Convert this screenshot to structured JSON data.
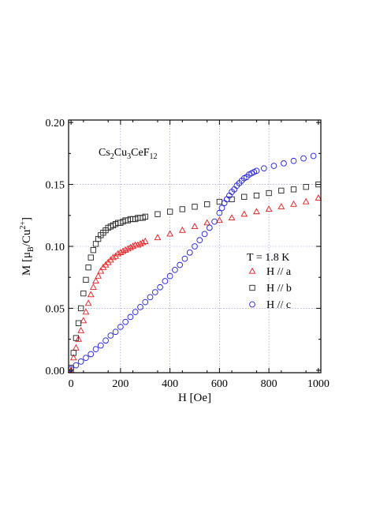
{
  "chart_data": {
    "type": "scatter",
    "title": "",
    "xlabel": "H [Oe]",
    "ylabel_parts": {
      "prefix": "M [μ",
      "sub_B": "B",
      "middle": "/Cu",
      "sup": "2+",
      "suffix": "]"
    },
    "compound_parts": [
      "Cs",
      "2",
      "Cu",
      "3",
      "CeF",
      "12"
    ],
    "temperature_label": "T = 1.8 K",
    "xlim": [
      -10,
      1010
    ],
    "ylim": [
      -0.002,
      0.202
    ],
    "xticks": [
      0,
      200,
      400,
      600,
      800,
      1000
    ],
    "xtick_labels": [
      "0",
      "200",
      "400",
      "600",
      "800",
      "1000"
    ],
    "yticks": [
      0.0,
      0.05,
      0.1,
      0.15,
      0.2
    ],
    "ytick_labels": [
      "0.00",
      "0.05",
      "0.10",
      "0.15",
      "0.20"
    ],
    "grid": true,
    "legend_position": "right-middle",
    "series": [
      {
        "name": "H // a",
        "marker": "triangle",
        "color": "#e31a1c",
        "x": [
          0,
          10,
          20,
          30,
          40,
          50,
          60,
          70,
          80,
          90,
          100,
          110,
          120,
          130,
          140,
          150,
          160,
          170,
          180,
          190,
          200,
          210,
          220,
          230,
          240,
          250,
          260,
          270,
          280,
          290,
          300,
          350,
          400,
          450,
          500,
          550,
          600,
          650,
          700,
          750,
          800,
          850,
          900,
          950,
          1000
        ],
        "y": [
          0.0,
          0.01,
          0.018,
          0.025,
          0.032,
          0.04,
          0.047,
          0.054,
          0.061,
          0.067,
          0.072,
          0.076,
          0.08,
          0.083,
          0.085,
          0.087,
          0.089,
          0.091,
          0.092,
          0.094,
          0.095,
          0.096,
          0.097,
          0.098,
          0.099,
          0.1,
          0.101,
          0.101,
          0.102,
          0.103,
          0.104,
          0.107,
          0.11,
          0.113,
          0.116,
          0.119,
          0.121,
          0.123,
          0.126,
          0.128,
          0.13,
          0.132,
          0.134,
          0.136,
          0.139
        ]
      },
      {
        "name": "H // b",
        "marker": "square",
        "color": "#222222",
        "x": [
          0,
          10,
          20,
          30,
          40,
          50,
          60,
          70,
          80,
          90,
          100,
          110,
          120,
          130,
          140,
          150,
          160,
          170,
          180,
          190,
          200,
          210,
          220,
          230,
          240,
          250,
          260,
          270,
          280,
          290,
          300,
          350,
          400,
          450,
          500,
          550,
          600,
          650,
          700,
          750,
          800,
          850,
          900,
          950,
          1000
        ],
        "y": [
          0.002,
          0.014,
          0.026,
          0.038,
          0.05,
          0.062,
          0.073,
          0.083,
          0.091,
          0.097,
          0.102,
          0.106,
          0.109,
          0.111,
          0.113,
          0.115,
          0.116,
          0.117,
          0.118,
          0.119,
          0.119,
          0.12,
          0.121,
          0.121,
          0.122,
          0.122,
          0.122,
          0.123,
          0.123,
          0.123,
          0.124,
          0.126,
          0.128,
          0.13,
          0.132,
          0.134,
          0.136,
          0.138,
          0.14,
          0.141,
          0.143,
          0.145,
          0.146,
          0.148,
          0.15
        ]
      },
      {
        "name": "H // c",
        "marker": "circle",
        "color": "#1f1fd6",
        "x": [
          0,
          20,
          40,
          60,
          80,
          100,
          120,
          140,
          160,
          180,
          200,
          220,
          240,
          260,
          280,
          300,
          320,
          340,
          360,
          380,
          400,
          420,
          440,
          460,
          480,
          500,
          520,
          540,
          560,
          580,
          600,
          610,
          620,
          630,
          640,
          650,
          660,
          670,
          680,
          690,
          700,
          710,
          720,
          730,
          740,
          750,
          780,
          820,
          860,
          900,
          940,
          980
        ],
        "y": [
          0.001,
          0.004,
          0.007,
          0.01,
          0.013,
          0.017,
          0.02,
          0.024,
          0.028,
          0.031,
          0.035,
          0.039,
          0.043,
          0.047,
          0.051,
          0.055,
          0.059,
          0.063,
          0.067,
          0.072,
          0.076,
          0.081,
          0.085,
          0.09,
          0.095,
          0.1,
          0.105,
          0.11,
          0.115,
          0.12,
          0.127,
          0.131,
          0.135,
          0.138,
          0.141,
          0.144,
          0.146,
          0.149,
          0.151,
          0.153,
          0.155,
          0.156,
          0.158,
          0.159,
          0.16,
          0.161,
          0.163,
          0.165,
          0.167,
          0.169,
          0.171,
          0.173
        ]
      }
    ]
  }
}
